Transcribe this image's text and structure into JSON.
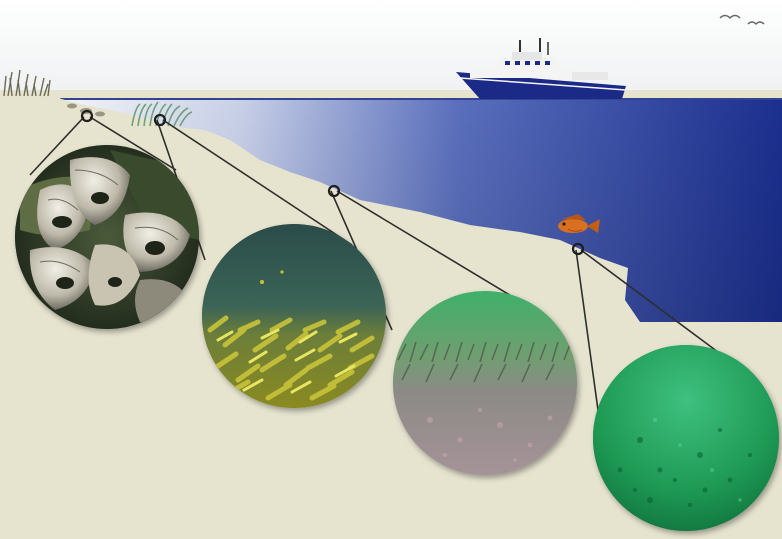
{
  "scene": {
    "colors": {
      "sky_top": "#ffffff",
      "sky_bottom": "#eef1f2",
      "sand": "#e6e4cf",
      "sand_edge": "#d8d6bf",
      "water_shallow": "#e8ecf4",
      "water_mid": "#7d8fc8",
      "water_deep": "#1a2f8c",
      "ship_hull": "#1a2a86",
      "ship_white": "#f4f4f4",
      "fish": "#d9701f",
      "leader_line": "#2d2d2d"
    },
    "icons": {
      "ship": "research-vessel-icon",
      "fish": "rockfish-icon",
      "birds": "seabird-icon",
      "marsh": "marsh-grass-icon",
      "seagrass": "seagrass-bed-icon"
    },
    "habitats": [
      {
        "id": "oyster-reef",
        "icon": "oyster-shell-icon"
      },
      {
        "id": "seagrass-meadow",
        "icon": "seagrass-icon"
      },
      {
        "id": "sandy-bottom",
        "icon": "sand-bottom-icon"
      },
      {
        "id": "deep-mud-bottom",
        "icon": "mud-bottom-icon"
      }
    ]
  }
}
